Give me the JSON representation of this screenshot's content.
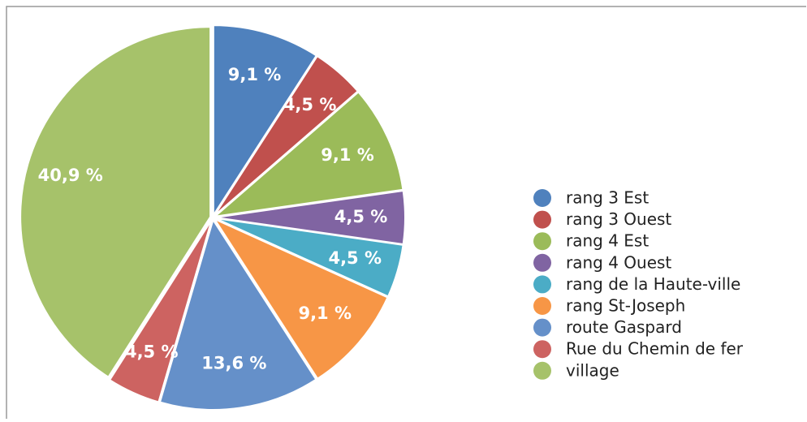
{
  "chart_data": {
    "type": "pie",
    "categories": [
      "rang 3 Est",
      "rang 3 Ouest",
      "rang 4 Est",
      "rang 4 Ouest",
      "rang de la Haute-ville",
      "rang St-Joseph",
      "route Gaspard",
      "Rue du Chemin de fer",
      "village"
    ],
    "values": [
      9.1,
      4.5,
      9.1,
      4.5,
      4.5,
      9.1,
      13.6,
      4.5,
      40.9
    ],
    "value_labels": [
      "9,1 %",
      "4,5 %",
      "9,1 %",
      "4,5 %",
      "4,5 %",
      "9,1 %",
      "13,6 %",
      "4,5 %",
      "40,9 %"
    ],
    "colors": [
      "#4f81bd",
      "#c0504d",
      "#9bbb59",
      "#8064a2",
      "#4bacc6",
      "#f79646",
      "#6590c9",
      "#cd6361",
      "#a6c26a"
    ],
    "legend": "right"
  }
}
